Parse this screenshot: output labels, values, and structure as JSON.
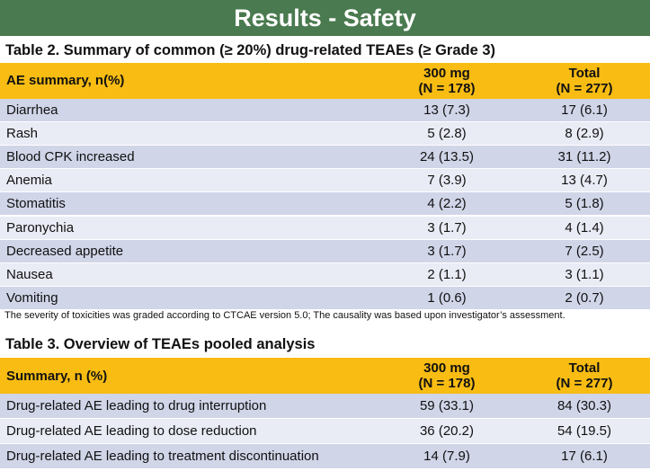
{
  "banner": {
    "title": "Results - Safety"
  },
  "colors": {
    "banner_bg": "#4a7a4f",
    "header_bg": "#f8bc13",
    "row_dark": "#d0d5e8",
    "row_light": "#e9ebf5"
  },
  "table2": {
    "title": "Table 2. Summary of common (≥ 20%) drug-related TEAEs (≥ Grade 3)",
    "headers": [
      "AE summary, n(%)",
      "300 mg",
      "(N = 178)",
      "Total",
      "(N = 277)"
    ],
    "rows": [
      [
        "Diarrhea",
        "13 (7.3)",
        "17 (6.1)"
      ],
      [
        "Rash",
        "5 (2.8)",
        "8 (2.9)"
      ],
      [
        "Blood CPK increased",
        "24 (13.5)",
        "31 (11.2)"
      ],
      [
        "Anemia",
        "7 (3.9)",
        "13 (4.7)"
      ],
      [
        "Stomatitis",
        "4 (2.2)",
        "5 (1.8)"
      ],
      [
        "Paronychia",
        "3 (1.7)",
        "4 (1.4)"
      ],
      [
        "Decreased appetite",
        "3 (1.7)",
        "7 (2.5)"
      ],
      [
        "Nausea",
        "2 (1.1)",
        "3 (1.1)"
      ],
      [
        "Vomiting",
        "1 (0.6)",
        "2 (0.7)"
      ]
    ],
    "note": "The severity of toxicities was graded according to CTCAE version 5.0; The causality was based upon investigator’s assessment."
  },
  "table3": {
    "title": "Table 3. Overview of TEAEs pooled analysis",
    "headers": [
      "Summary, n (%)",
      "300 mg",
      "(N = 178)",
      "Total",
      "(N = 277)"
    ],
    "rows": [
      [
        "Drug-related AE leading to drug interruption",
        "59 (33.1)",
        "84 (30.3)"
      ],
      [
        "Drug-related AE leading to dose reduction",
        "36 (20.2)",
        "54 (19.5)"
      ],
      [
        "Drug-related AE leading to treatment discontinuation",
        "14 (7.9)",
        "17 (6.1)"
      ]
    ]
  }
}
